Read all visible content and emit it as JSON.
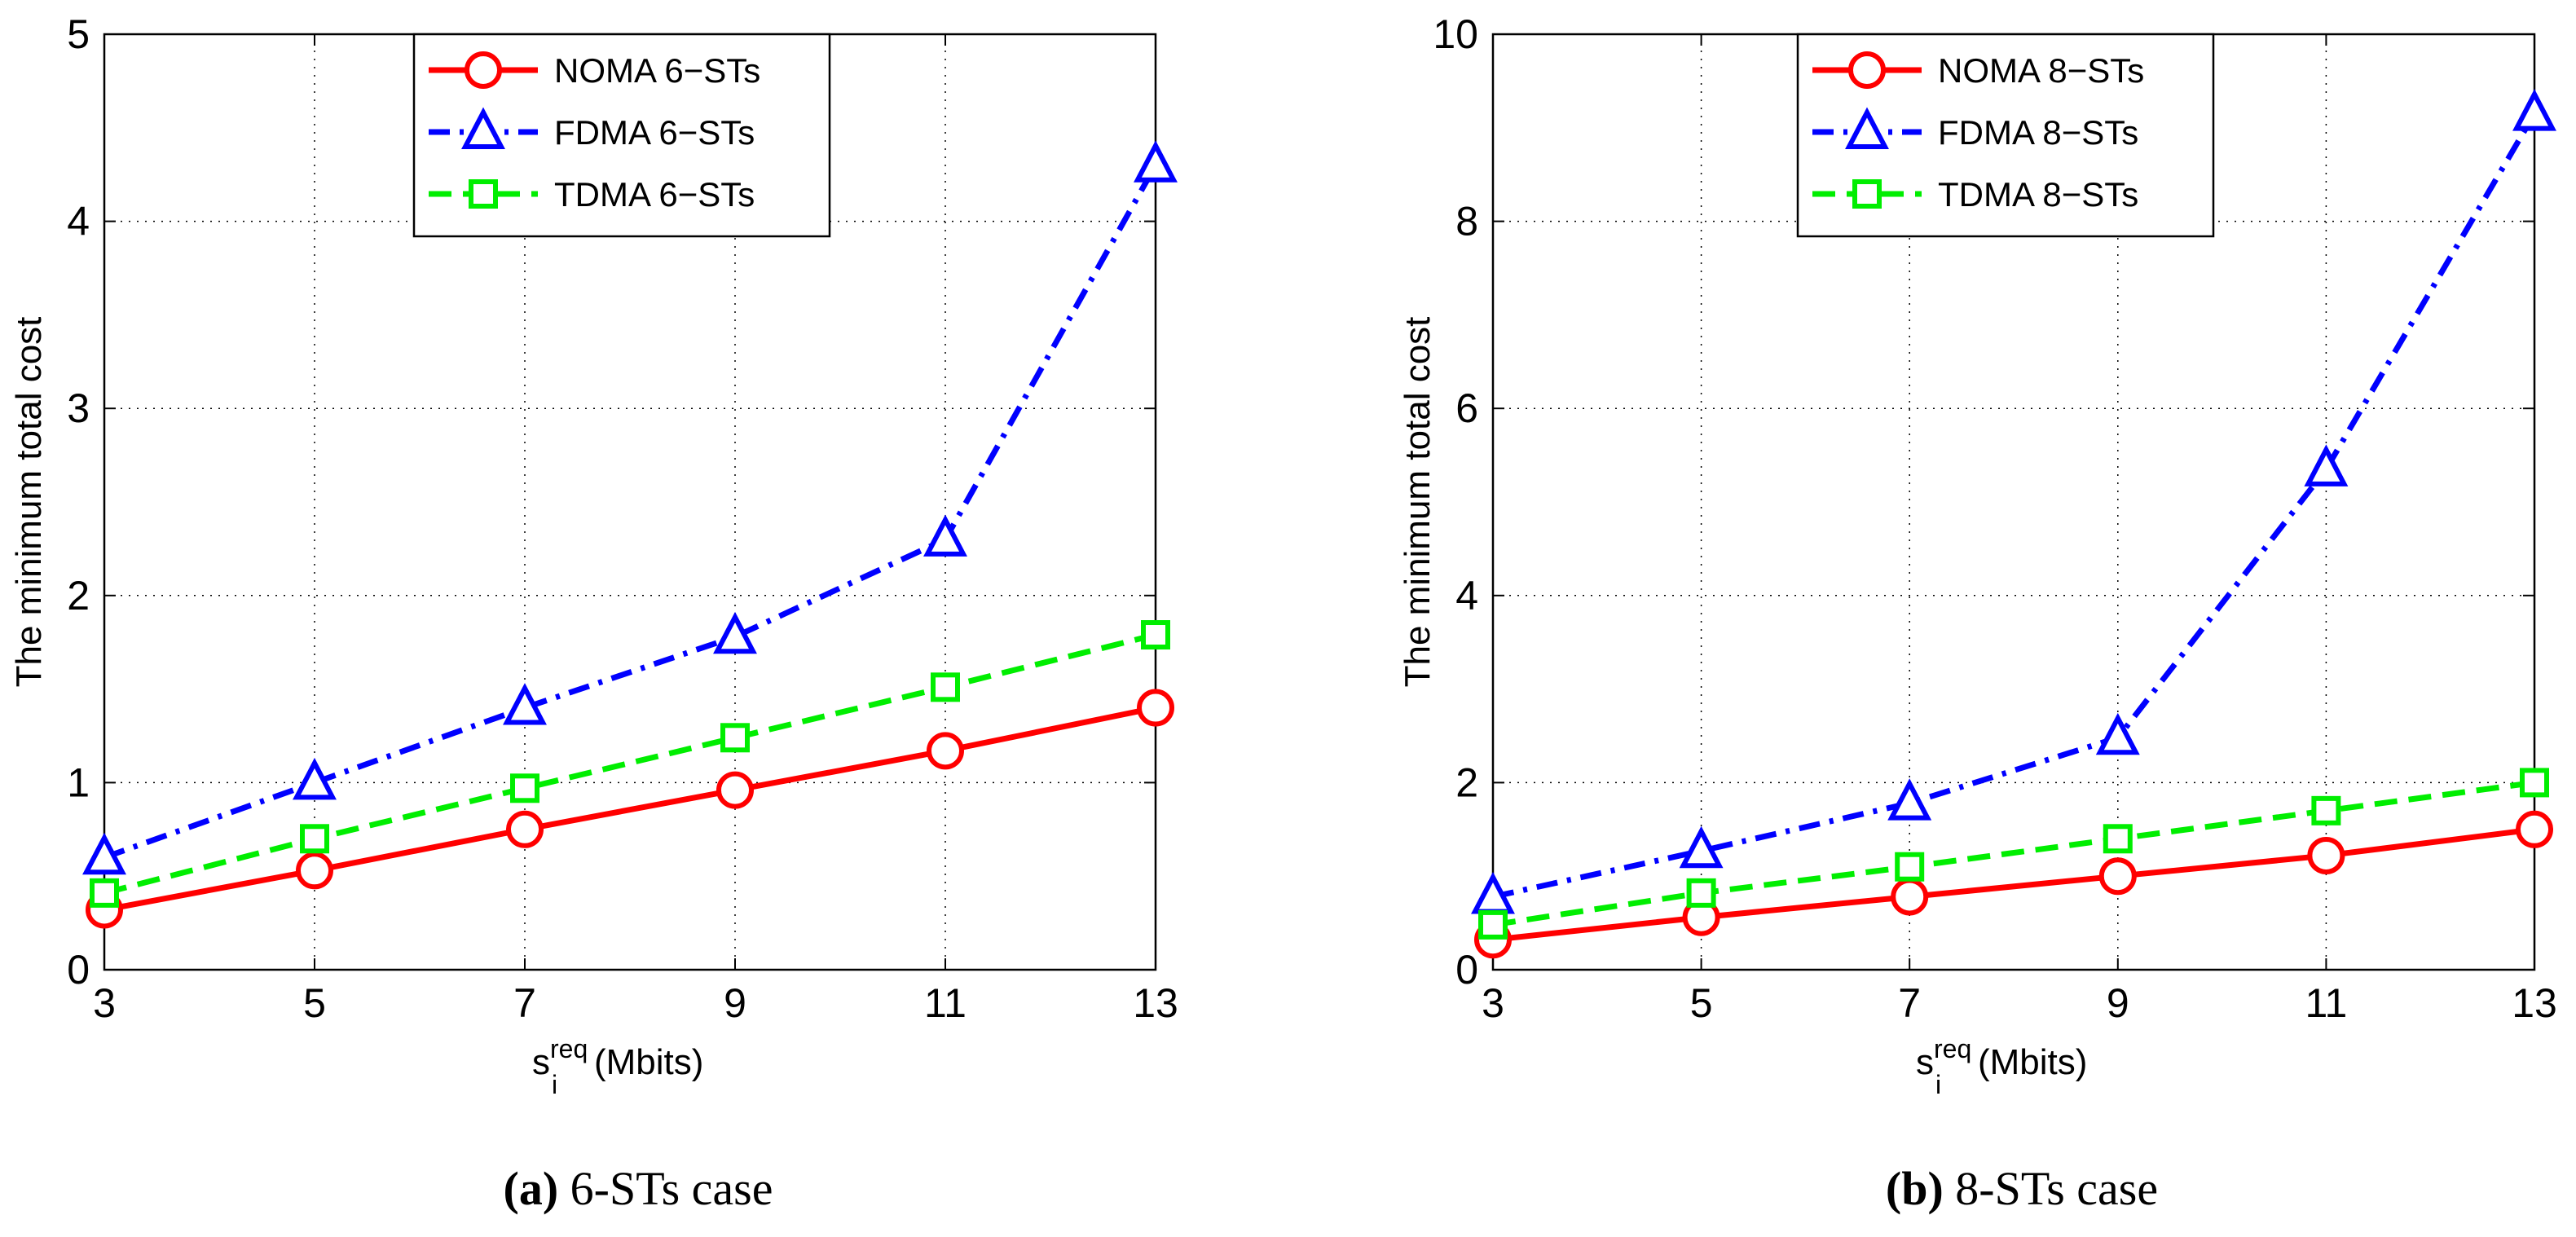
{
  "chart_data": [
    {
      "type": "line",
      "panel": "left",
      "caption_label": "a",
      "caption_text": "6-STs case",
      "ylabel": "The minimum total cost",
      "xlabel": {
        "base": "s",
        "sub": "i",
        "sup": "req",
        "unit": "(Mbits)"
      },
      "x": [
        3,
        5,
        7,
        9,
        11,
        13
      ],
      "xlim": [
        3,
        13
      ],
      "ylim": [
        0,
        5
      ],
      "xticks": [
        "3",
        "5",
        "7",
        "9",
        "11",
        "13"
      ],
      "yticks": [
        "0",
        "1",
        "2",
        "3",
        "4",
        "5"
      ],
      "grid": true,
      "legend_position": "top-center",
      "series": [
        {
          "name": "NOMA 6−STs",
          "marker": "circle",
          "color": "#ff0000",
          "dash": "solid",
          "values": [
            0.32,
            0.53,
            0.75,
            0.96,
            1.17,
            1.4
          ]
        },
        {
          "name": "FDMA 6−STs",
          "marker": "triangle",
          "color": "#0000ff",
          "dash": "dashdot",
          "values": [
            0.6,
            1.0,
            1.4,
            1.78,
            2.3,
            4.3
          ]
        },
        {
          "name": "TDMA 6−STs",
          "marker": "square",
          "color": "#00ee00",
          "dash": "dashed",
          "values": [
            0.41,
            0.7,
            0.97,
            1.24,
            1.51,
            1.79
          ]
        }
      ]
    },
    {
      "type": "line",
      "panel": "right",
      "caption_label": "b",
      "caption_text": "8-STs case",
      "ylabel": "The minimum total cost",
      "xlabel": {
        "base": "s",
        "sub": "i",
        "sup": "req",
        "unit": "(Mbits)"
      },
      "x": [
        3,
        5,
        7,
        9,
        11,
        13
      ],
      "xlim": [
        3,
        13
      ],
      "ylim": [
        0,
        10
      ],
      "xticks": [
        "3",
        "5",
        "7",
        "9",
        "11",
        "13"
      ],
      "yticks": [
        "0",
        "2",
        "4",
        "6",
        "8",
        "10"
      ],
      "grid": true,
      "legend_position": "top-center",
      "series": [
        {
          "name": "NOMA 8−STs",
          "marker": "circle",
          "color": "#ff0000",
          "dash": "solid",
          "values": [
            0.32,
            0.56,
            0.78,
            1.0,
            1.22,
            1.5
          ]
        },
        {
          "name": "FDMA 8−STs",
          "marker": "triangle",
          "color": "#0000ff",
          "dash": "dashdot",
          "values": [
            0.78,
            1.27,
            1.78,
            2.48,
            5.35,
            9.15
          ]
        },
        {
          "name": "TDMA 8−STs",
          "marker": "square",
          "color": "#00ee00",
          "dash": "dashed",
          "values": [
            0.48,
            0.82,
            1.1,
            1.4,
            1.7,
            2.0
          ]
        }
      ]
    }
  ]
}
